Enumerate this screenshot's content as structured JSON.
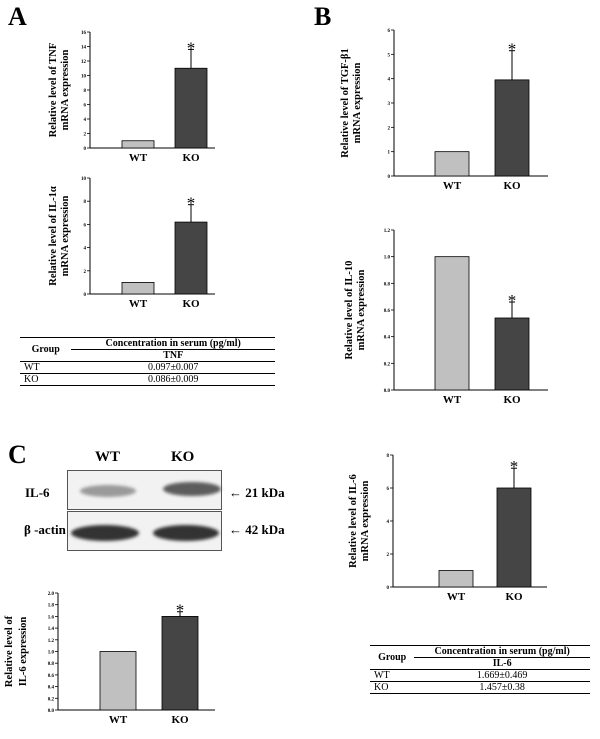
{
  "panels": {
    "a": "A",
    "b": "B",
    "c": "C"
  },
  "chart_data": [
    {
      "id": "tnf",
      "type": "bar",
      "categories": [
        "WT",
        "KO"
      ],
      "values": [
        1.0,
        11.0
      ],
      "errors": [
        0,
        2.6
      ],
      "significant": [
        false,
        true
      ],
      "ylim": [
        0,
        16
      ],
      "yticks": [
        0,
        2,
        4,
        6,
        8,
        10,
        12,
        14,
        16
      ],
      "ylabel": [
        "Relative level of TNF",
        "mRNA expression"
      ],
      "xlabel": "",
      "title": ""
    },
    {
      "id": "il1a",
      "type": "bar",
      "categories": [
        "WT",
        "KO"
      ],
      "values": [
        1.0,
        6.2
      ],
      "errors": [
        0,
        1.5
      ],
      "significant": [
        false,
        true
      ],
      "ylim": [
        0,
        10
      ],
      "yticks": [
        0,
        2,
        4,
        6,
        8,
        10
      ],
      "ylabel": [
        "Relative level of IL-1α",
        "mRNA expression"
      ],
      "xlabel": "",
      "title": ""
    },
    {
      "id": "tgfb1",
      "type": "bar",
      "categories": [
        "WT",
        "KO"
      ],
      "values": [
        1.0,
        3.95
      ],
      "errors": [
        0,
        1.2
      ],
      "significant": [
        false,
        true
      ],
      "ylim": [
        0,
        6
      ],
      "yticks": [
        0,
        1,
        2,
        3,
        4,
        5,
        6
      ],
      "ylabel": [
        "Relative level of TGF-β1",
        "mRNA expression"
      ],
      "xlabel": "",
      "title": ""
    },
    {
      "id": "il10",
      "type": "bar",
      "categories": [
        "WT",
        "KO"
      ],
      "values": [
        1.0,
        0.54
      ],
      "errors": [
        0,
        0.12
      ],
      "significant": [
        false,
        true
      ],
      "ylim": [
        0,
        1.2
      ],
      "yticks": [
        "0.0",
        "0.2",
        "0.4",
        "0.6",
        "0.8",
        "1.0",
        "1.2"
      ],
      "ylabel": [
        "Relative level of IL-10",
        "mRNA expression"
      ],
      "xlabel": "",
      "title": ""
    },
    {
      "id": "il6mrna",
      "type": "bar",
      "categories": [
        "WT",
        "KO"
      ],
      "values": [
        1.0,
        6.0
      ],
      "errors": [
        0,
        1.2
      ],
      "significant": [
        false,
        true
      ],
      "ylim": [
        0,
        8
      ],
      "yticks": [
        0,
        2,
        4,
        6,
        8
      ],
      "ylabel": [
        "Relative level of IL-6",
        "mRNA expression"
      ],
      "xlabel": "",
      "title": ""
    },
    {
      "id": "il6prot",
      "type": "bar",
      "categories": [
        "WT",
        "KO"
      ],
      "values": [
        1.0,
        1.6
      ],
      "errors": [
        0,
        0.08
      ],
      "significant": [
        false,
        true
      ],
      "ylim": [
        0,
        2.0
      ],
      "yticks": [
        "0.0",
        "0.2",
        "0.4",
        "0.6",
        "0.8",
        "1.0",
        "1.2",
        "1.4",
        "1.6",
        "1.8",
        "2.0"
      ],
      "ylabel": [
        "Relative level of",
        "IL-6 expression"
      ],
      "xlabel": "",
      "title": ""
    }
  ],
  "colors": {
    "wt": "#c0c0c0",
    "ko": "#454545"
  },
  "significance_mark": "*",
  "table_tnf": {
    "group_header": "Group",
    "header": "Concentration in serum (pg/ml)",
    "subheader": "TNF",
    "rows": [
      {
        "group": "WT",
        "value": "0.097±0.007"
      },
      {
        "group": "KO",
        "value": "0.086±0.009"
      }
    ]
  },
  "table_il6": {
    "group_header": "Group",
    "header": "Concentration in serum (pg/ml)",
    "subheader": "IL-6",
    "rows": [
      {
        "group": "WT",
        "value": "1.669±0.469"
      },
      {
        "group": "KO",
        "value": "1.457±0.38"
      }
    ]
  },
  "western_blot": {
    "lanes": [
      "WT",
      "KO"
    ],
    "rows": [
      {
        "label": "IL-6",
        "marker": "← 21 kDa"
      },
      {
        "label": "β -actin",
        "marker": "← 42 kDa"
      }
    ]
  }
}
